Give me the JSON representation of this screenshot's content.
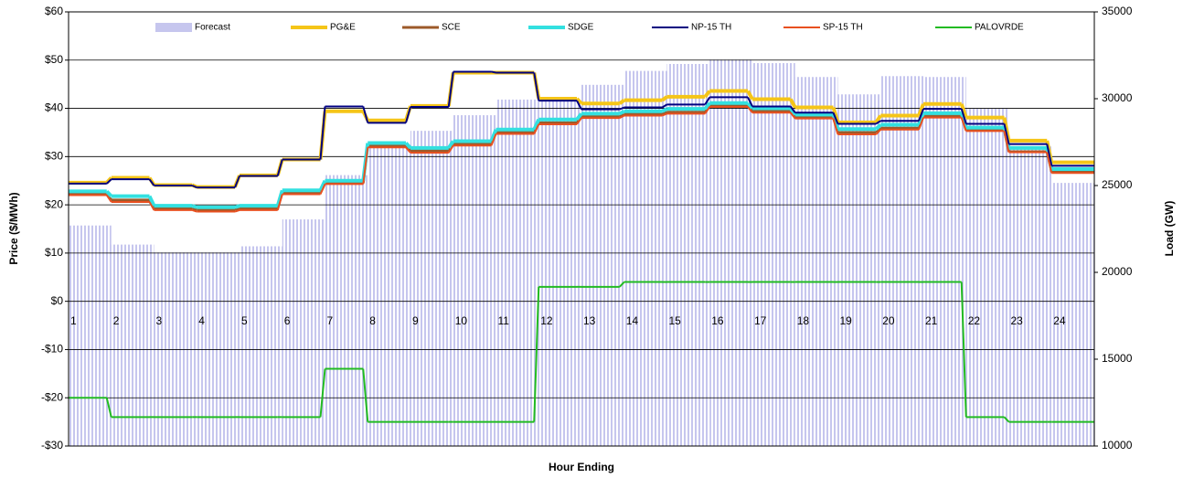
{
  "chart_data": {
    "type": "step",
    "x_label": "Hour Ending",
    "y_label": "Price ($/MWh)",
    "y2_label": "Load (GW)",
    "categories": [
      "1",
      "2",
      "3",
      "4",
      "5",
      "6",
      "7",
      "8",
      "9",
      "10",
      "11",
      "12",
      "13",
      "14",
      "15",
      "16",
      "17",
      "18",
      "19",
      "20",
      "21",
      "22",
      "23",
      "24"
    ],
    "ylim": [
      -30,
      60
    ],
    "yticks": [
      {
        "value": -30,
        "label": "-$30"
      },
      {
        "value": -20,
        "label": "-$20"
      },
      {
        "value": -10,
        "label": "-$10"
      },
      {
        "value": 0,
        "label": "$0"
      },
      {
        "value": 10,
        "label": "$10"
      },
      {
        "value": 20,
        "label": "$20"
      },
      {
        "value": 30,
        "label": "$30"
      },
      {
        "value": 40,
        "label": "$40"
      },
      {
        "value": 50,
        "label": "$50"
      },
      {
        "value": 60,
        "label": "$60"
      }
    ],
    "y2lim": [
      10000,
      35000
    ],
    "y2ticks": [
      10000,
      15000,
      20000,
      25000,
      30000,
      35000
    ],
    "grid": true,
    "legend": "top",
    "series": [
      {
        "name": "Forecast",
        "color": "#c6c6ee",
        "style": "bar",
        "axis": "y2",
        "values": [
          22700,
          21600,
          21150,
          21150,
          21500,
          23050,
          25600,
          27250,
          28150,
          29050,
          29950,
          29900,
          30800,
          31600,
          32000,
          32250,
          32050,
          31250,
          30250,
          31300,
          31250,
          29450,
          27250,
          25150
        ]
      },
      {
        "name": "PG&E",
        "color": "#f5c518",
        "style": "line",
        "values": [
          24.6,
          25.6,
          24.1,
          23.7,
          26.1,
          29.4,
          39.4,
          37.5,
          40.5,
          47.4,
          47.4,
          42.0,
          41.0,
          41.7,
          42.4,
          43.6,
          41.9,
          40.2,
          37.1,
          38.5,
          40.9,
          38.1,
          33.3,
          28.8
        ]
      },
      {
        "name": "SCE",
        "color": "#9c5a2a",
        "style": "line",
        "values": [
          22.2,
          21.0,
          19.3,
          19.0,
          19.3,
          22.5,
          24.5,
          32.2,
          31.2,
          32.7,
          35.0,
          37.0,
          38.3,
          38.8,
          39.2,
          40.5,
          39.4,
          38.1,
          35.0,
          35.9,
          38.4,
          35.5,
          31.0,
          26.9
        ]
      },
      {
        "name": "SDGE",
        "color": "#33e0e0",
        "style": "line",
        "values": [
          22.8,
          21.8,
          19.8,
          19.5,
          19.8,
          23.0,
          25.0,
          32.8,
          31.8,
          33.2,
          35.6,
          37.7,
          38.9,
          39.4,
          39.9,
          41.1,
          40.0,
          38.7,
          35.7,
          36.6,
          39.0,
          36.0,
          31.8,
          27.4
        ]
      },
      {
        "name": "NP-15 TH",
        "color": "#000080",
        "style": "line",
        "values": [
          24.4,
          25.3,
          24.0,
          23.6,
          26.0,
          29.4,
          40.4,
          37.0,
          40.3,
          47.6,
          47.4,
          41.6,
          39.8,
          40.2,
          40.8,
          42.3,
          40.4,
          39.1,
          36.8,
          37.4,
          39.9,
          36.8,
          32.6,
          28.1
        ]
      },
      {
        "name": "SP-15 TH",
        "color": "#e85020",
        "style": "line",
        "values": [
          22.0,
          20.6,
          18.9,
          18.6,
          18.9,
          22.2,
          24.3,
          31.9,
          30.8,
          32.3,
          34.7,
          36.7,
          38.0,
          38.5,
          38.9,
          40.3,
          39.1,
          37.9,
          34.6,
          35.6,
          38.1,
          35.3,
          30.9,
          26.6
        ]
      },
      {
        "name": "PALOVRDE",
        "color": "#22bb22",
        "style": "line",
        "values": [
          -20,
          -24,
          -24,
          -24,
          -24,
          -24,
          -14,
          -25,
          -25,
          -25,
          -25,
          3,
          3,
          4,
          4,
          4,
          4,
          4,
          4,
          4,
          4,
          -24,
          -25,
          -25
        ]
      }
    ]
  }
}
